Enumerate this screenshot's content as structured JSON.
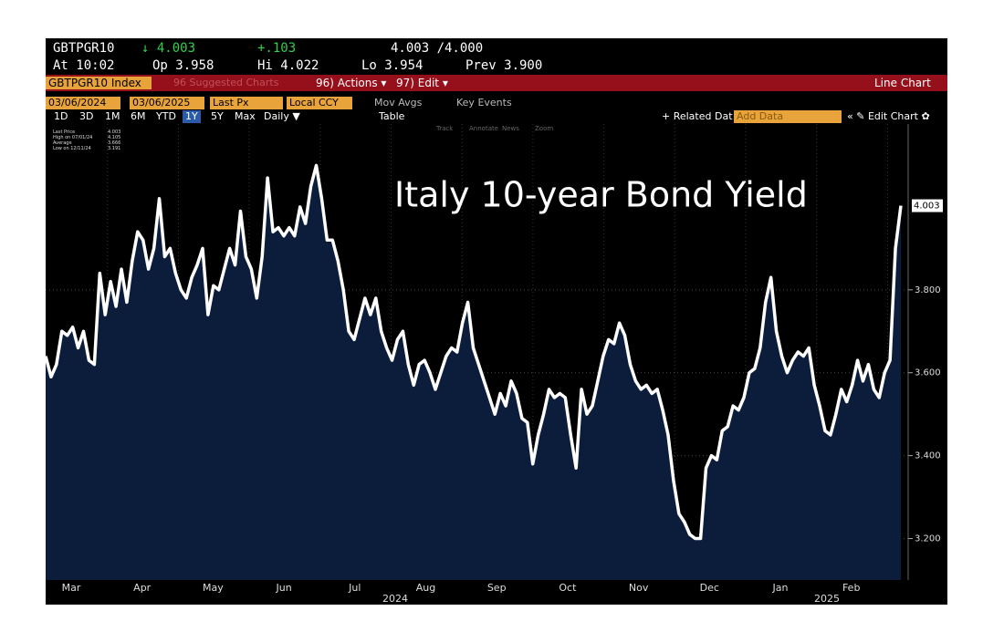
{
  "terminal": {
    "ticker": "GBTPGR10",
    "last": "↓ 4.003",
    "change": "+.103",
    "bidask": "4.003 /4.000",
    "time": "At 10:02",
    "open": "Op 3.958",
    "high": "Hi 4.022",
    "low": "Lo 3.954",
    "prev": "Prev 3.900",
    "security": "GBTPGR10 Index",
    "suggested": "96 Suggested Charts",
    "actions": "96) Actions ▾",
    "edit": "97) Edit ▾",
    "view": "Line Chart",
    "start_date": "03/06/2024",
    "end_date": "03/06/2025",
    "field": "Last Px",
    "currency": "Local CCY",
    "mov_avgs": "Mov Avgs",
    "key_events": "Key Events",
    "periods": [
      "1D",
      "3D",
      "1M",
      "6M",
      "YTD",
      "1Y",
      "5Y",
      "Max",
      "Daily ▼",
      "Table"
    ],
    "related": "+ Related Dat",
    "add_data": "Add Data",
    "edit_chart": "« ✎ Edit Chart ✿",
    "tools": [
      "Track",
      "Annotate",
      "News",
      "Zoom"
    ],
    "legend": [
      [
        "Last Price",
        "4.003"
      ],
      [
        "High on 07/01/24",
        "4.105"
      ],
      [
        "Average",
        "3.666"
      ],
      [
        "Low on 12/11/24",
        "3.191"
      ]
    ]
  },
  "chart_data": {
    "type": "line",
    "title": "Italy 10-year Bond Yield",
    "x_labels": [
      "Mar",
      "Apr",
      "May",
      "Jun",
      "Jul",
      "Aug",
      "Sep",
      "Oct",
      "Nov",
      "Dec",
      "Jan",
      "Feb"
    ],
    "year_labels": [
      "2024",
      "2025"
    ],
    "series": [
      {
        "name": "Last Price",
        "color": "#ffffff",
        "values": [
          3.64,
          3.59,
          3.62,
          3.7,
          3.69,
          3.71,
          3.66,
          3.7,
          3.63,
          3.62,
          3.84,
          3.74,
          3.82,
          3.76,
          3.85,
          3.77,
          3.87,
          3.94,
          3.92,
          3.85,
          3.9,
          4.02,
          3.88,
          3.9,
          3.84,
          3.8,
          3.78,
          3.83,
          3.86,
          3.9,
          3.74,
          3.81,
          3.8,
          3.85,
          3.9,
          3.86,
          3.99,
          3.88,
          3.85,
          3.78,
          3.88,
          4.07,
          3.94,
          3.95,
          3.93,
          3.95,
          3.93,
          4.0,
          3.96,
          4.05,
          4.1,
          4.02,
          3.92,
          3.92,
          3.87,
          3.8,
          3.7,
          3.68,
          3.73,
          3.78,
          3.74,
          3.78,
          3.7,
          3.66,
          3.63,
          3.68,
          3.7,
          3.62,
          3.57,
          3.62,
          3.63,
          3.6,
          3.56,
          3.6,
          3.64,
          3.66,
          3.65,
          3.72,
          3.77,
          3.66,
          3.62,
          3.58,
          3.54,
          3.5,
          3.55,
          3.52,
          3.58,
          3.55,
          3.49,
          3.48,
          3.38,
          3.45,
          3.5,
          3.56,
          3.54,
          3.55,
          3.54,
          3.45,
          3.37,
          3.56,
          3.5,
          3.52,
          3.58,
          3.64,
          3.68,
          3.67,
          3.72,
          3.69,
          3.62,
          3.58,
          3.56,
          3.57,
          3.55,
          3.56,
          3.51,
          3.45,
          3.34,
          3.26,
          3.24,
          3.21,
          3.2,
          3.2,
          3.37,
          3.4,
          3.39,
          3.46,
          3.47,
          3.52,
          3.51,
          3.54,
          3.6,
          3.61,
          3.66,
          3.77,
          3.83,
          3.7,
          3.64,
          3.6,
          3.63,
          3.65,
          3.64,
          3.66,
          3.57,
          3.52,
          3.46,
          3.45,
          3.5,
          3.56,
          3.53,
          3.57,
          3.63,
          3.58,
          3.62,
          3.56,
          3.54,
          3.6,
          3.63,
          3.9,
          4.003
        ]
      }
    ],
    "area_color": "#0c1d3c",
    "ylim": [
      3.1,
      4.2
    ],
    "yticks": [
      {
        "value": 3.2,
        "label": "3.200"
      },
      {
        "value": 3.4,
        "label": "3.400"
      },
      {
        "value": 3.6,
        "label": "3.600"
      },
      {
        "value": 3.8,
        "label": "3.800"
      }
    ],
    "grid": true
  }
}
